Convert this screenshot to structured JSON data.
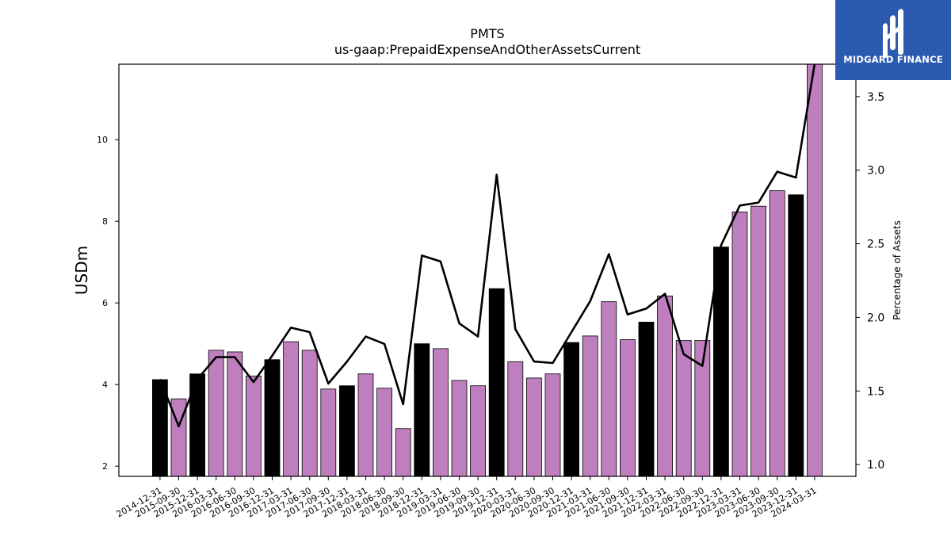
{
  "chart_data": {
    "type": "bar",
    "title": "PMTS",
    "subtitle": "us-gaap:PrepaidExpenseAndOtherAssetsCurrent",
    "ylabel": "USDm",
    "y2label": "Percentage of Assets",
    "ylim": [
      1.75,
      11.85
    ],
    "y2lim": [
      0.92,
      3.72
    ],
    "yticks": [
      2,
      4,
      6,
      8,
      10
    ],
    "y2ticks": [
      1.0,
      1.5,
      2.0,
      2.5,
      3.0,
      3.5
    ],
    "categories": [
      "2014-12-31",
      "2015-09-30",
      "2015-12-31",
      "2016-03-31",
      "2016-06-30",
      "2016-09-30",
      "2016-12-31",
      "2017-03-31",
      "2017-06-30",
      "2017-09-30",
      "2017-12-31",
      "2018-03-31",
      "2018-06-30",
      "2018-09-30",
      "2018-12-31",
      "2019-03-31",
      "2019-06-30",
      "2019-09-30",
      "2019-12-31",
      "2020-03-31",
      "2020-06-30",
      "2020-09-30",
      "2020-12-31",
      "2021-03-31",
      "2021-06-30",
      "2021-09-30",
      "2021-12-31",
      "2022-03-31",
      "2022-06-30",
      "2022-09-30",
      "2022-12-31",
      "2023-03-31",
      "2023-06-30",
      "2023-09-30",
      "2023-12-31",
      "2024-03-31"
    ],
    "series": [
      {
        "type": "bar",
        "values": [
          4.12,
          3.65,
          4.26,
          4.84,
          4.8,
          4.21,
          4.61,
          5.05,
          4.84,
          3.89,
          3.97,
          4.26,
          3.91,
          2.92,
          5.0,
          4.88,
          4.1,
          3.97,
          6.35,
          4.56,
          4.16,
          4.26,
          5.03,
          5.19,
          6.03,
          5.1,
          5.53,
          6.17,
          5.08,
          5.08,
          7.37,
          8.23,
          8.37,
          8.75,
          8.65,
          11.85
        ],
        "year_end": [
          true,
          false,
          true,
          false,
          false,
          false,
          true,
          false,
          false,
          false,
          true,
          false,
          false,
          false,
          true,
          false,
          false,
          false,
          true,
          false,
          false,
          false,
          true,
          false,
          false,
          false,
          true,
          false,
          false,
          false,
          true,
          false,
          false,
          false,
          true,
          false
        ]
      },
      {
        "type": "line",
        "axis": "right",
        "values": [
          1.58,
          1.26,
          1.58,
          1.73,
          1.73,
          1.56,
          1.74,
          1.93,
          1.9,
          1.55,
          1.7,
          1.87,
          1.82,
          1.41,
          2.42,
          2.38,
          1.96,
          1.87,
          2.97,
          1.92,
          1.7,
          1.69,
          1.9,
          2.11,
          2.43,
          2.02,
          2.06,
          2.16,
          1.75,
          1.67,
          2.49,
          2.76,
          2.78,
          2.99,
          2.95,
          3.72
        ]
      }
    ],
    "colors": {
      "year_end_bar": "#000000",
      "bar": "#bf7fbf",
      "line": "#000000"
    },
    "grid": false,
    "legend": "none"
  },
  "logo": {
    "text": "MIDGARD FINANCE",
    "icon": "midgard-logo-icon"
  }
}
